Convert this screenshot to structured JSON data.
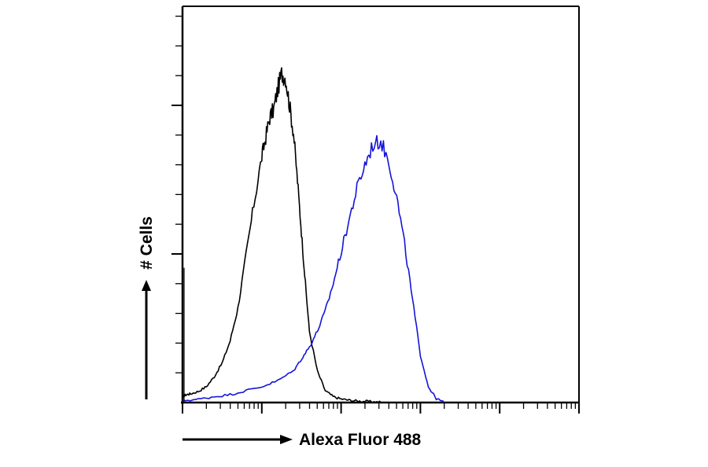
{
  "chart_data": {
    "type": "line",
    "title": "",
    "xlabel": "Alexa Fluor 488",
    "ylabel": "# Cells",
    "x_scale": "log",
    "xlim": [
      0,
      5
    ],
    "ylim": [
      0,
      100
    ],
    "grid": false,
    "legend": "none",
    "series": [
      {
        "color": "#000000",
        "x": [
          0.0,
          0.05,
          0.1,
          0.2,
          0.3,
          0.4,
          0.5,
          0.6,
          0.7,
          0.8,
          0.9,
          1.0,
          1.05,
          1.1,
          1.15,
          1.2,
          1.25,
          1.3,
          1.35,
          1.4,
          1.45,
          1.5,
          1.55,
          1.6,
          1.7,
          1.8,
          1.9,
          2.0,
          2.1,
          2.2,
          2.3,
          2.4,
          2.5
        ],
        "y": [
          1.5,
          2.0,
          2.2,
          2.8,
          4.0,
          6.5,
          10.0,
          15.5,
          24.0,
          37.0,
          50.0,
          62.0,
          67.0,
          72.0,
          74.0,
          79.0,
          83.0,
          82.0,
          75.0,
          68.0,
          56.0,
          43.0,
          30.0,
          18.0,
          8.0,
          3.0,
          1.5,
          0.9,
          0.6,
          0.4,
          0.3,
          0.2,
          0.1
        ]
      },
      {
        "color": "#1515d8",
        "x": [
          0.0,
          0.2,
          0.4,
          0.6,
          0.8,
          1.0,
          1.2,
          1.4,
          1.5,
          1.6,
          1.7,
          1.8,
          1.9,
          2.0,
          2.1,
          2.2,
          2.3,
          2.4,
          2.5,
          2.6,
          2.7,
          2.8,
          2.9,
          3.0,
          3.1,
          3.2,
          3.3
        ],
        "y": [
          0.5,
          0.8,
          1.5,
          2.0,
          3.0,
          4.0,
          5.5,
          8.0,
          11.0,
          14.0,
          18.0,
          23.0,
          30.0,
          38.0,
          46.0,
          54.0,
          60.0,
          65.0,
          66.0,
          61.0,
          52.0,
          40.0,
          26.0,
          12.0,
          4.0,
          1.0,
          0.0
        ]
      }
    ]
  }
}
